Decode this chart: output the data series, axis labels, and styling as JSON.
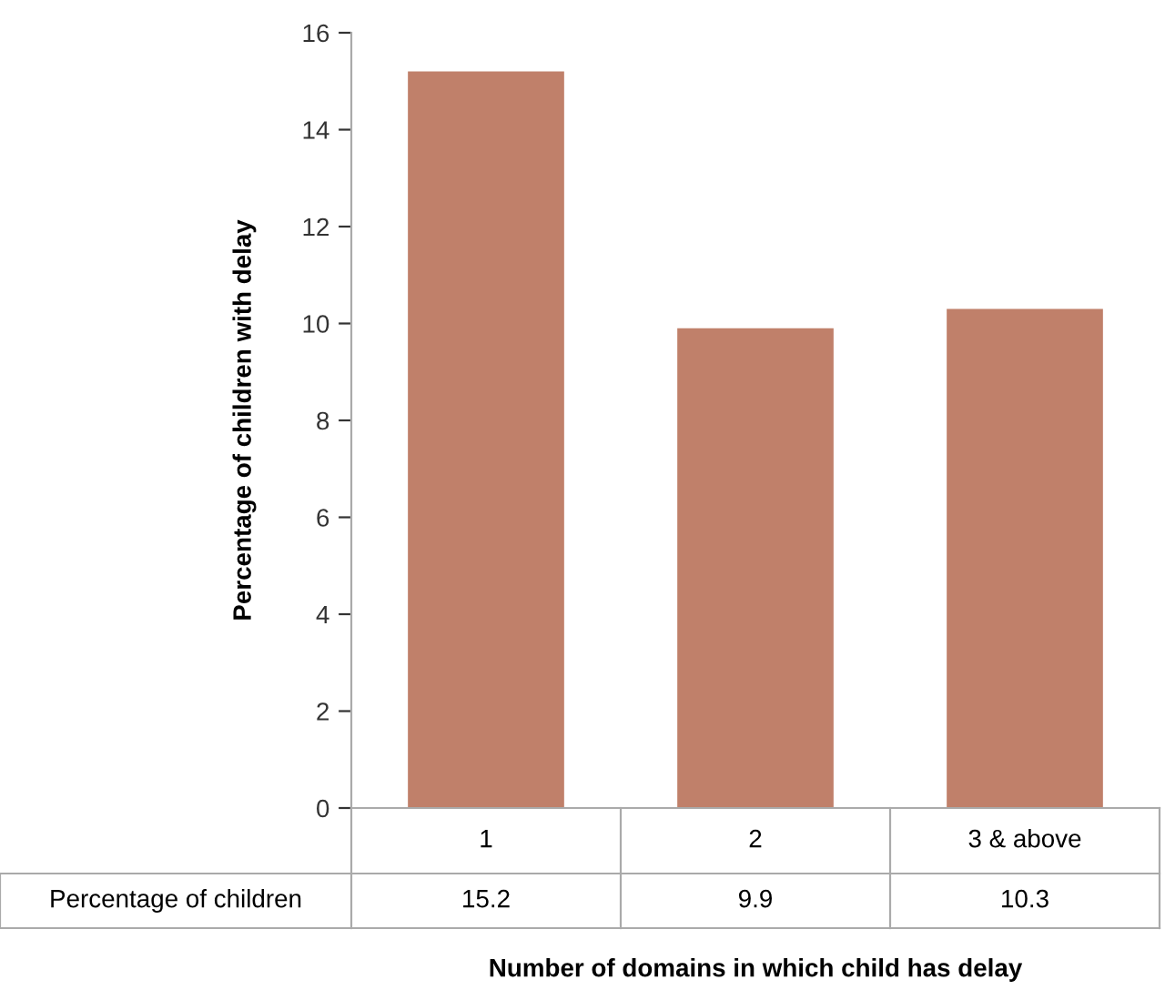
{
  "chart_data": {
    "type": "bar",
    "xlabel": "Number of domains in which child has delay",
    "ylabel": "Percentage of children with delay",
    "categories": [
      "1",
      "2",
      "3 & above"
    ],
    "series": [
      {
        "name": "Percentage of children",
        "color": "#c0806a",
        "values": [
          15.2,
          9.9,
          10.3
        ]
      }
    ],
    "ylim": [
      0,
      16
    ],
    "yticks": [
      0,
      2,
      4,
      6,
      8,
      10,
      12,
      14,
      16
    ],
    "grid": false,
    "legend": false,
    "data_labels": true
  }
}
